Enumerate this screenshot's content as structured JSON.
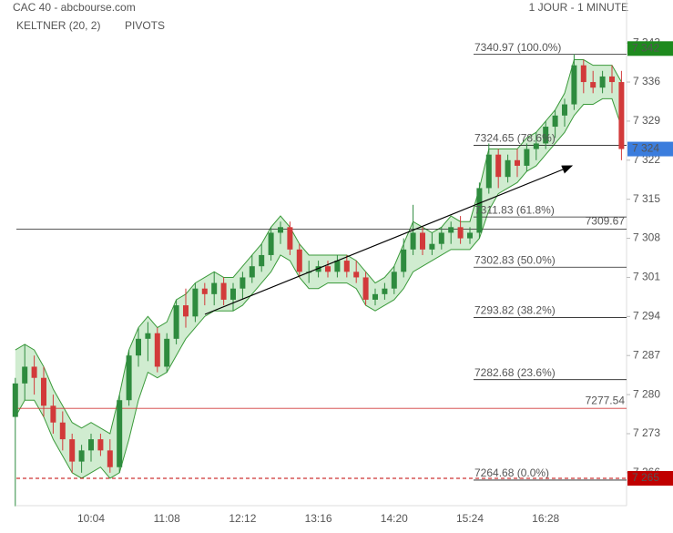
{
  "chart_data": {
    "type": "candlestick",
    "title": "CAC 40 - abcbourse.com",
    "subtitle": "1 JOUR - 1 MINUTE",
    "indicators": [
      {
        "label": "KELTNER (20, 2)",
        "color": "#3a9a3a"
      },
      {
        "label": "PIVOTS",
        "color": "#444"
      }
    ],
    "categories": [
      null,
      null,
      null,
      null,
      null,
      null,
      null,
      null,
      "10:04",
      null,
      null,
      null,
      null,
      null,
      null,
      null,
      "11:08",
      null,
      null,
      null,
      null,
      null,
      null,
      null,
      "12:12",
      null,
      null,
      null,
      null,
      null,
      null,
      null,
      "13:16",
      null,
      null,
      null,
      null,
      null,
      null,
      null,
      "14:20",
      null,
      null,
      null,
      null,
      null,
      null,
      null,
      "15:24",
      null,
      null,
      null,
      null,
      null,
      null,
      null,
      "16:28",
      null,
      null,
      null,
      null,
      null,
      null,
      null,
      null
    ],
    "open": [
      7276,
      7282,
      7285,
      7283,
      7278,
      7275,
      7272,
      7268,
      7270,
      7272,
      7270,
      7267,
      7279,
      7287,
      7290,
      7291,
      7285,
      7290,
      7296,
      7294,
      7299,
      7298,
      7300,
      7297,
      7299,
      7301,
      7303,
      7305,
      7309,
      7310,
      7306,
      7302,
      7302,
      7303,
      7302,
      7304,
      7302,
      7301,
      7297,
      7298,
      7299,
      7302,
      7306,
      7309,
      7306,
      7307,
      7309,
      7310,
      7308,
      7309,
      7317,
      7323,
      7319,
      7322,
      7321,
      7324,
      7325,
      7328,
      7330,
      7332,
      7339,
      7336,
      7335,
      7337,
      7336
    ],
    "high": [
      7283,
      7289,
      7287,
      7285,
      7280,
      7277,
      7273,
      7271,
      7273,
      7273,
      7272,
      7280,
      7288,
      7292,
      7293,
      7292,
      7291,
      7297,
      7299,
      7300,
      7300,
      7302,
      7301,
      7300,
      7302,
      7305,
      7307,
      7310,
      7311,
      7311,
      7307,
      7304,
      7304,
      7304,
      7305,
      7305,
      7304,
      7302,
      7299,
      7300,
      7303,
      7308,
      7314,
      7310,
      7309,
      7310,
      7311,
      7312,
      7310,
      7318,
      7325,
      7324,
      7323,
      7324,
      7325,
      7327,
      7329,
      7331,
      7333,
      7341,
      7340,
      7338,
      7338,
      7339,
      7338
    ],
    "low": [
      7260,
      7279,
      7280,
      7276,
      7273,
      7270,
      7266,
      7266,
      7268,
      7269,
      7266,
      7266,
      7278,
      7285,
      7286,
      7284,
      7284,
      7289,
      7292,
      7293,
      7296,
      7296,
      7296,
      7295,
      7297,
      7300,
      7302,
      7304,
      7307,
      7305,
      7301,
      7300,
      7301,
      7301,
      7301,
      7301,
      7300,
      7296,
      7296,
      7297,
      7298,
      7301,
      7305,
      7305,
      7305,
      7306,
      7307,
      7307,
      7307,
      7308,
      7316,
      7317,
      7318,
      7319,
      7320,
      7322,
      7324,
      7326,
      7328,
      7331,
      7334,
      7334,
      7334,
      7334,
      7322
    ],
    "close": [
      7282,
      7285,
      7283,
      7278,
      7275,
      7272,
      7268,
      7270,
      7272,
      7270,
      7267,
      7279,
      7287,
      7290,
      7291,
      7285,
      7290,
      7296,
      7294,
      7299,
      7298,
      7300,
      7297,
      7299,
      7301,
      7303,
      7305,
      7309,
      7310,
      7306,
      7302,
      7302,
      7303,
      7302,
      7304,
      7302,
      7301,
      7297,
      7298,
      7299,
      7302,
      7306,
      7309,
      7306,
      7307,
      7309,
      7310,
      7308,
      7309,
      7317,
      7323,
      7319,
      7322,
      7321,
      7324,
      7325,
      7328,
      7330,
      7332,
      7339,
      7336,
      7335,
      7337,
      7336,
      7324
    ],
    "up_color": "#2e8b3e",
    "down_color": "#d23a3a",
    "keltner": {
      "color": "#3a9a3a",
      "upper": [
        7288,
        7289,
        7288,
        7285,
        7281,
        7278,
        7275,
        7274,
        7275,
        7274,
        7273,
        7280,
        7288,
        7292,
        7294,
        7292,
        7293,
        7297,
        7298,
        7300,
        7301,
        7302,
        7301,
        7301,
        7303,
        7305,
        7307,
        7310,
        7312,
        7310,
        7307,
        7305,
        7305,
        7305,
        7305,
        7305,
        7304,
        7302,
        7300,
        7301,
        7303,
        7307,
        7311,
        7310,
        7309,
        7310,
        7312,
        7311,
        7311,
        7317,
        7324,
        7324,
        7324,
        7324,
        7326,
        7327,
        7329,
        7331,
        7334,
        7340,
        7340,
        7339,
        7339,
        7339,
        7336
      ],
      "lower": [
        7276,
        7279,
        7279,
        7276,
        7272,
        7269,
        7266,
        7265,
        7266,
        7267,
        7265,
        7266,
        7272,
        7279,
        7284,
        7283,
        7284,
        7287,
        7290,
        7292,
        7294,
        7295,
        7295,
        7295,
        7296,
        7298,
        7300,
        7302,
        7305,
        7304,
        7301,
        7299,
        7299,
        7300,
        7300,
        7300,
        7299,
        7296,
        7295,
        7296,
        7297,
        7299,
        7302,
        7303,
        7304,
        7305,
        7306,
        7306,
        7306,
        7308,
        7313,
        7316,
        7317,
        7318,
        7320,
        7321,
        7323,
        7325,
        7327,
        7330,
        7332,
        7332,
        7333,
        7333,
        7328
      ]
    },
    "ylim": [
      7260.1,
      7350.7
    ],
    "yticks": [
      {
        "value": 7266,
        "label": "7 266"
      },
      {
        "value": 7273,
        "label": "7 273"
      },
      {
        "value": 7280,
        "label": "7 280"
      },
      {
        "value": 7287,
        "label": "7 287"
      },
      {
        "value": 7294,
        "label": "7 294"
      },
      {
        "value": 7301,
        "label": "7 301"
      },
      {
        "value": 7308,
        "label": "7 308"
      },
      {
        "value": 7315,
        "label": "7 315"
      },
      {
        "value": 7322,
        "label": "7 322"
      },
      {
        "value": 7329,
        "label": "7 329"
      },
      {
        "value": 7336,
        "label": "7 336"
      },
      {
        "value": 7343,
        "label": "7 343"
      }
    ],
    "fib_levels": [
      {
        "value": 7340.97,
        "label": "7340.97 (100.0%)"
      },
      {
        "value": 7324.65,
        "label": "7324.65 (78.6%)"
      },
      {
        "value": 7311.83,
        "label": "7311.83 (61.8%)"
      },
      {
        "value": 7302.83,
        "label": "7302.83 (50.0%)"
      },
      {
        "value": 7293.82,
        "label": "7293.82 (38.2%)"
      },
      {
        "value": 7282.68,
        "label": "7282.68 (23.6%)"
      },
      {
        "value": 7264.68,
        "label": "7264.68 (0.0%)"
      }
    ],
    "levels": [
      {
        "value": 7309.67,
        "color": "#222"
      },
      {
        "value": 7277.54,
        "color": "#d23a3a"
      }
    ],
    "tags": [
      {
        "value": 7342,
        "label": "7 342",
        "color": "#1e8a1e",
        "dashed": false
      },
      {
        "value": 7324,
        "label": "7 324",
        "color": "#3b7ddd",
        "dashed": false
      },
      {
        "value": 7265,
        "label": "7 265",
        "color": "#c00000",
        "dashed": true
      }
    ]
  }
}
